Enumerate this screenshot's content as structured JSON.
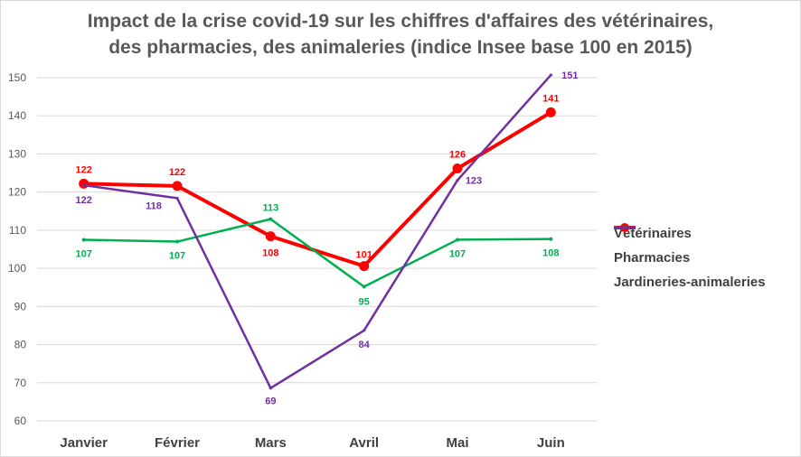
{
  "title_lines": [
    "Impact de la crise covid-19 sur les chiffres d'affaires des vétérinaires,",
    "des pharmacies, des animaleries (indice Insee base 100 en 2015)"
  ],
  "chart_data": {
    "type": "line",
    "title": "Impact de la crise covid-19 sur les chiffres d'affaires des vétérinaires, des pharmacies, des animaleries (indice Insee base 100 en 2015)",
    "categories": [
      "Janvier",
      "Février",
      "Mars",
      "Avril",
      "Mai",
      "Juin"
    ],
    "ylim": [
      60,
      150
    ],
    "yticks": [
      60,
      70,
      80,
      90,
      100,
      110,
      120,
      130,
      140,
      150
    ],
    "grid": true,
    "legend_position": "right",
    "series": [
      {
        "name": "Vétérinaires",
        "color": "#ff0000",
        "values": [
          122.2,
          121.6,
          108.4,
          100.6,
          126.2,
          140.9
        ],
        "labels": [
          "122",
          "122",
          "108",
          "101",
          "126",
          "141"
        ]
      },
      {
        "name": "Pharmacies",
        "color": "#00b050",
        "values": [
          107.5,
          107.0,
          112.9,
          95.2,
          107.5,
          107.7
        ],
        "labels": [
          "107",
          "107",
          "113",
          "95",
          "107",
          "108"
        ]
      },
      {
        "name": "Jardineries-animaleries",
        "color": "#7030a0",
        "values": [
          121.8,
          118.4,
          68.6,
          83.7,
          123.1,
          150.7
        ],
        "labels": [
          "122",
          "118",
          "69",
          "84",
          "123",
          "151"
        ]
      }
    ]
  }
}
